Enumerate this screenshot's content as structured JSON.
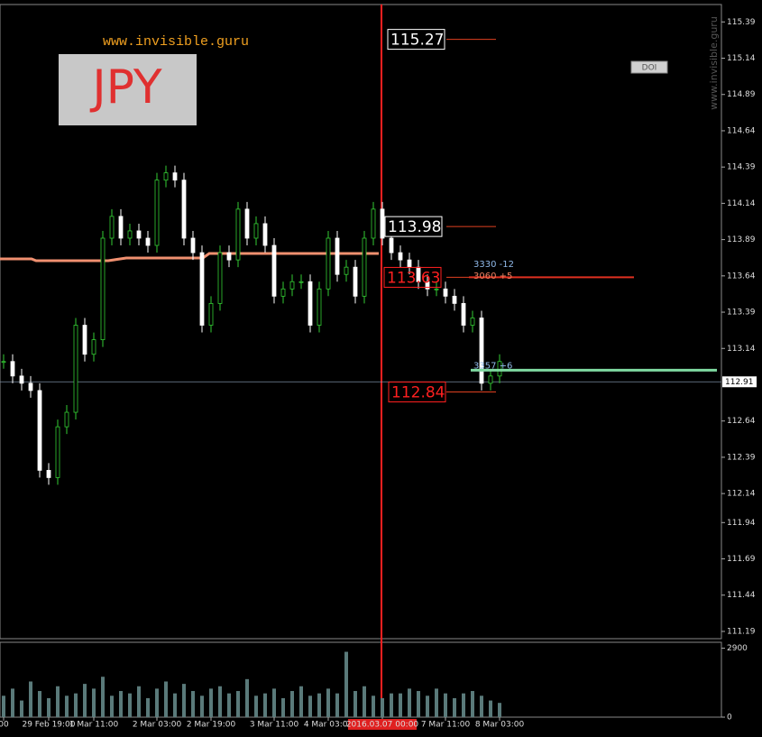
{
  "chart_data": {
    "type": "candlestick",
    "watermark": "www.invisible.guru",
    "symbol": "JPY",
    "side_text": "www.invisible.guru",
    "button": "DOI",
    "ylim": [
      111.14,
      115.51
    ],
    "yticks": [
      115.39,
      115.14,
      114.89,
      114.64,
      114.39,
      114.14,
      113.89,
      113.64,
      113.39,
      113.14,
      112.64,
      112.39,
      112.14,
      111.94,
      111.69,
      111.44,
      111.19
    ],
    "current_price": 112.91,
    "closes": [
      113.05,
      112.95,
      112.9,
      112.85,
      112.3,
      112.25,
      112.6,
      112.7,
      113.3,
      113.1,
      113.2,
      113.9,
      114.05,
      113.9,
      113.95,
      113.9,
      113.85,
      114.3,
      114.35,
      114.3,
      113.9,
      113.8,
      113.3,
      113.45,
      113.8,
      113.75,
      114.1,
      113.9,
      114.0,
      113.85,
      113.5,
      113.55,
      113.6,
      113.6,
      113.3,
      113.55,
      113.9,
      113.65,
      113.7,
      113.5,
      113.9,
      114.1,
      113.9,
      113.8,
      113.75,
      113.7,
      113.6,
      113.55,
      113.55,
      113.5,
      113.45,
      113.3,
      113.35,
      112.9,
      112.95,
      113.05
    ],
    "volume": [
      900,
      1200,
      700,
      1500,
      1100,
      800,
      1300,
      900,
      1000,
      1400,
      1200,
      1700,
      900,
      1100,
      1000,
      1300,
      800,
      1200,
      1500,
      1000,
      1400,
      1100,
      900,
      1200,
      1300,
      1000,
      1100,
      1600,
      900,
      1000,
      1200,
      800,
      1100,
      1300,
      900,
      1000,
      1200,
      1000,
      2750,
      1100,
      1300,
      900,
      800,
      1000,
      1000,
      1200,
      1100,
      900,
      1200,
      1000,
      800,
      1000,
      1100,
      900,
      700,
      600
    ],
    "vol_ylim": [
      0,
      3150
    ],
    "vol_yticks": [
      2900,
      0
    ],
    "xticks": [
      {
        "value": 0,
        "label": "00"
      },
      {
        "value": 5,
        "label": "29 Feb 19:00"
      },
      {
        "value": 10,
        "label": "1 Mar 11:00"
      },
      {
        "value": 17,
        "label": "2 Mar 03:00"
      },
      {
        "value": 23,
        "label": "2 Mar 19:00"
      },
      {
        "value": 30,
        "label": "3 Mar 11:00"
      },
      {
        "value": 36,
        "label": "4 Mar 03:00"
      },
      {
        "value": 42,
        "label": "2016.03.07 00:00"
      },
      {
        "value": 49,
        "label": "7 Mar 11:00"
      },
      {
        "value": 55,
        "label": "8 Mar 03:00"
      }
    ],
    "levels": [
      {
        "value": 115.27,
        "label": "115.27",
        "color": "#ffffff"
      },
      {
        "value": 113.98,
        "label": "113.98",
        "color": "#ffffff"
      },
      {
        "value": 113.63,
        "label": "113.63",
        "color": "#ff2020"
      },
      {
        "value": 112.84,
        "label": "112.84",
        "color": "#ff2020"
      }
    ],
    "annotations": [
      {
        "text": "3330 -12",
        "value": 113.72,
        "color": "#8fb8e8"
      },
      {
        "text": "3060 +5",
        "value": 113.64,
        "color": "#f08060"
      },
      {
        "text": "3357 +6",
        "value": 113.02,
        "color": "#8fb8e8"
      }
    ],
    "support_line": {
      "value": 112.99,
      "color": "#7fd9a0"
    }
  }
}
